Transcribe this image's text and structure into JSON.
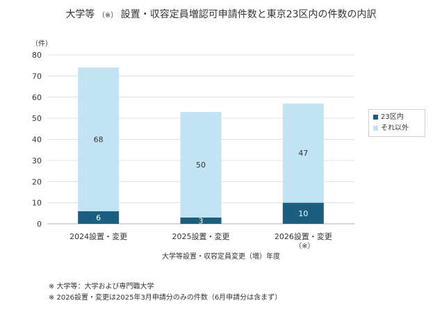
{
  "title": "大学等",
  "title_note": "（※）",
  "title_rest": "設置・収容定員増認可申請件数と東京23区内の件数の内訳",
  "chart_data": {
    "type": "bar",
    "stacked": true,
    "categories": [
      "2024設置・変更",
      "2025設置・変更",
      "2026設置・変更"
    ],
    "category_notes": [
      "",
      "",
      "（※）"
    ],
    "series": [
      {
        "name": "23区内",
        "values": [
          6,
          3,
          10
        ],
        "color": "#1b5e80"
      },
      {
        "name": "それ以外",
        "values": [
          68,
          50,
          47
        ],
        "color": "#c2e3f4"
      }
    ],
    "y_unit": "（件）",
    "ylim": [
      0,
      80
    ],
    "yticks": [
      0,
      10,
      20,
      30,
      40,
      50,
      60,
      70,
      80
    ],
    "xlabel": "大学等設置・収容定員変更（増）年度",
    "ylabel": "",
    "grid": true,
    "legend_position": "right"
  },
  "notes": [
    "※ 大学等：大学および専門職大学",
    "※ 2026設置・変更は2025年3月申請分のみの件数（6月申請分は含まず）"
  ]
}
